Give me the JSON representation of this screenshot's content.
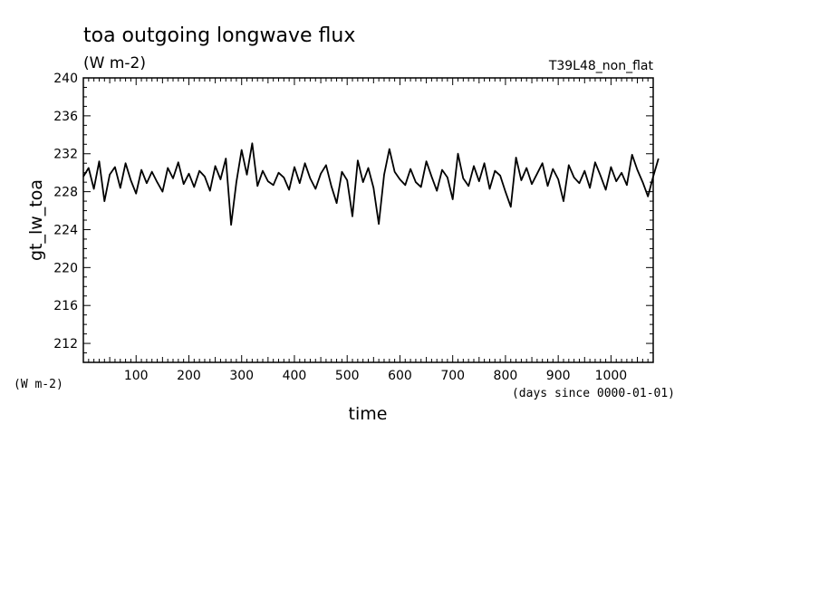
{
  "chart_data": {
    "type": "line",
    "title": "toa outgoing longwave flux",
    "units_label": "(W m-2)",
    "run_label": "T39L48_non_flat",
    "ylabel": "gt_lw_toa",
    "y_units_label": "(W m-2)",
    "xlabel": "time",
    "x_units_label": "(days since 0000-01-01)",
    "xlim": [
      0,
      1080
    ],
    "ylim": [
      210,
      240
    ],
    "x_ticks": [
      100,
      200,
      300,
      400,
      500,
      600,
      700,
      800,
      900,
      1000
    ],
    "y_ticks": [
      212,
      216,
      220,
      224,
      228,
      232,
      236,
      240
    ],
    "grid": false,
    "series": [
      {
        "color": "#000000",
        "x_step": 10,
        "values": [
          229.6,
          230.5,
          228.3,
          231.2,
          227.0,
          229.8,
          230.6,
          228.4,
          231.0,
          229.2,
          227.8,
          230.3,
          228.9,
          230.1,
          229.0,
          228.0,
          230.5,
          229.4,
          231.1,
          228.8,
          229.9,
          228.5,
          230.2,
          229.6,
          228.1,
          230.7,
          229.3,
          231.5,
          224.5,
          229.0,
          232.4,
          229.8,
          233.1,
          228.6,
          230.2,
          229.1,
          228.7,
          230.0,
          229.5,
          228.2,
          230.6,
          228.9,
          231.0,
          229.4,
          228.3,
          229.9,
          230.8,
          228.6,
          226.8,
          230.1,
          229.2,
          225.4,
          231.3,
          229.0,
          230.5,
          228.4,
          224.6,
          229.8,
          232.5,
          230.1,
          229.3,
          228.7,
          230.4,
          229.0,
          228.5,
          231.2,
          229.6,
          228.1,
          230.3,
          229.5,
          227.2,
          232.0,
          229.4,
          228.6,
          230.7,
          229.1,
          231.0,
          228.3,
          230.2,
          229.7,
          228.0,
          226.4,
          231.6,
          229.2,
          230.5,
          228.8,
          229.9,
          231.0,
          228.6,
          230.4,
          229.3,
          227.0,
          230.8,
          229.5,
          228.9,
          230.2,
          228.4,
          231.1,
          229.7,
          228.2,
          230.6,
          229.1,
          230.0,
          228.7,
          231.9,
          230.3,
          229.0,
          227.5,
          229.6,
          231.5
        ]
      }
    ]
  }
}
